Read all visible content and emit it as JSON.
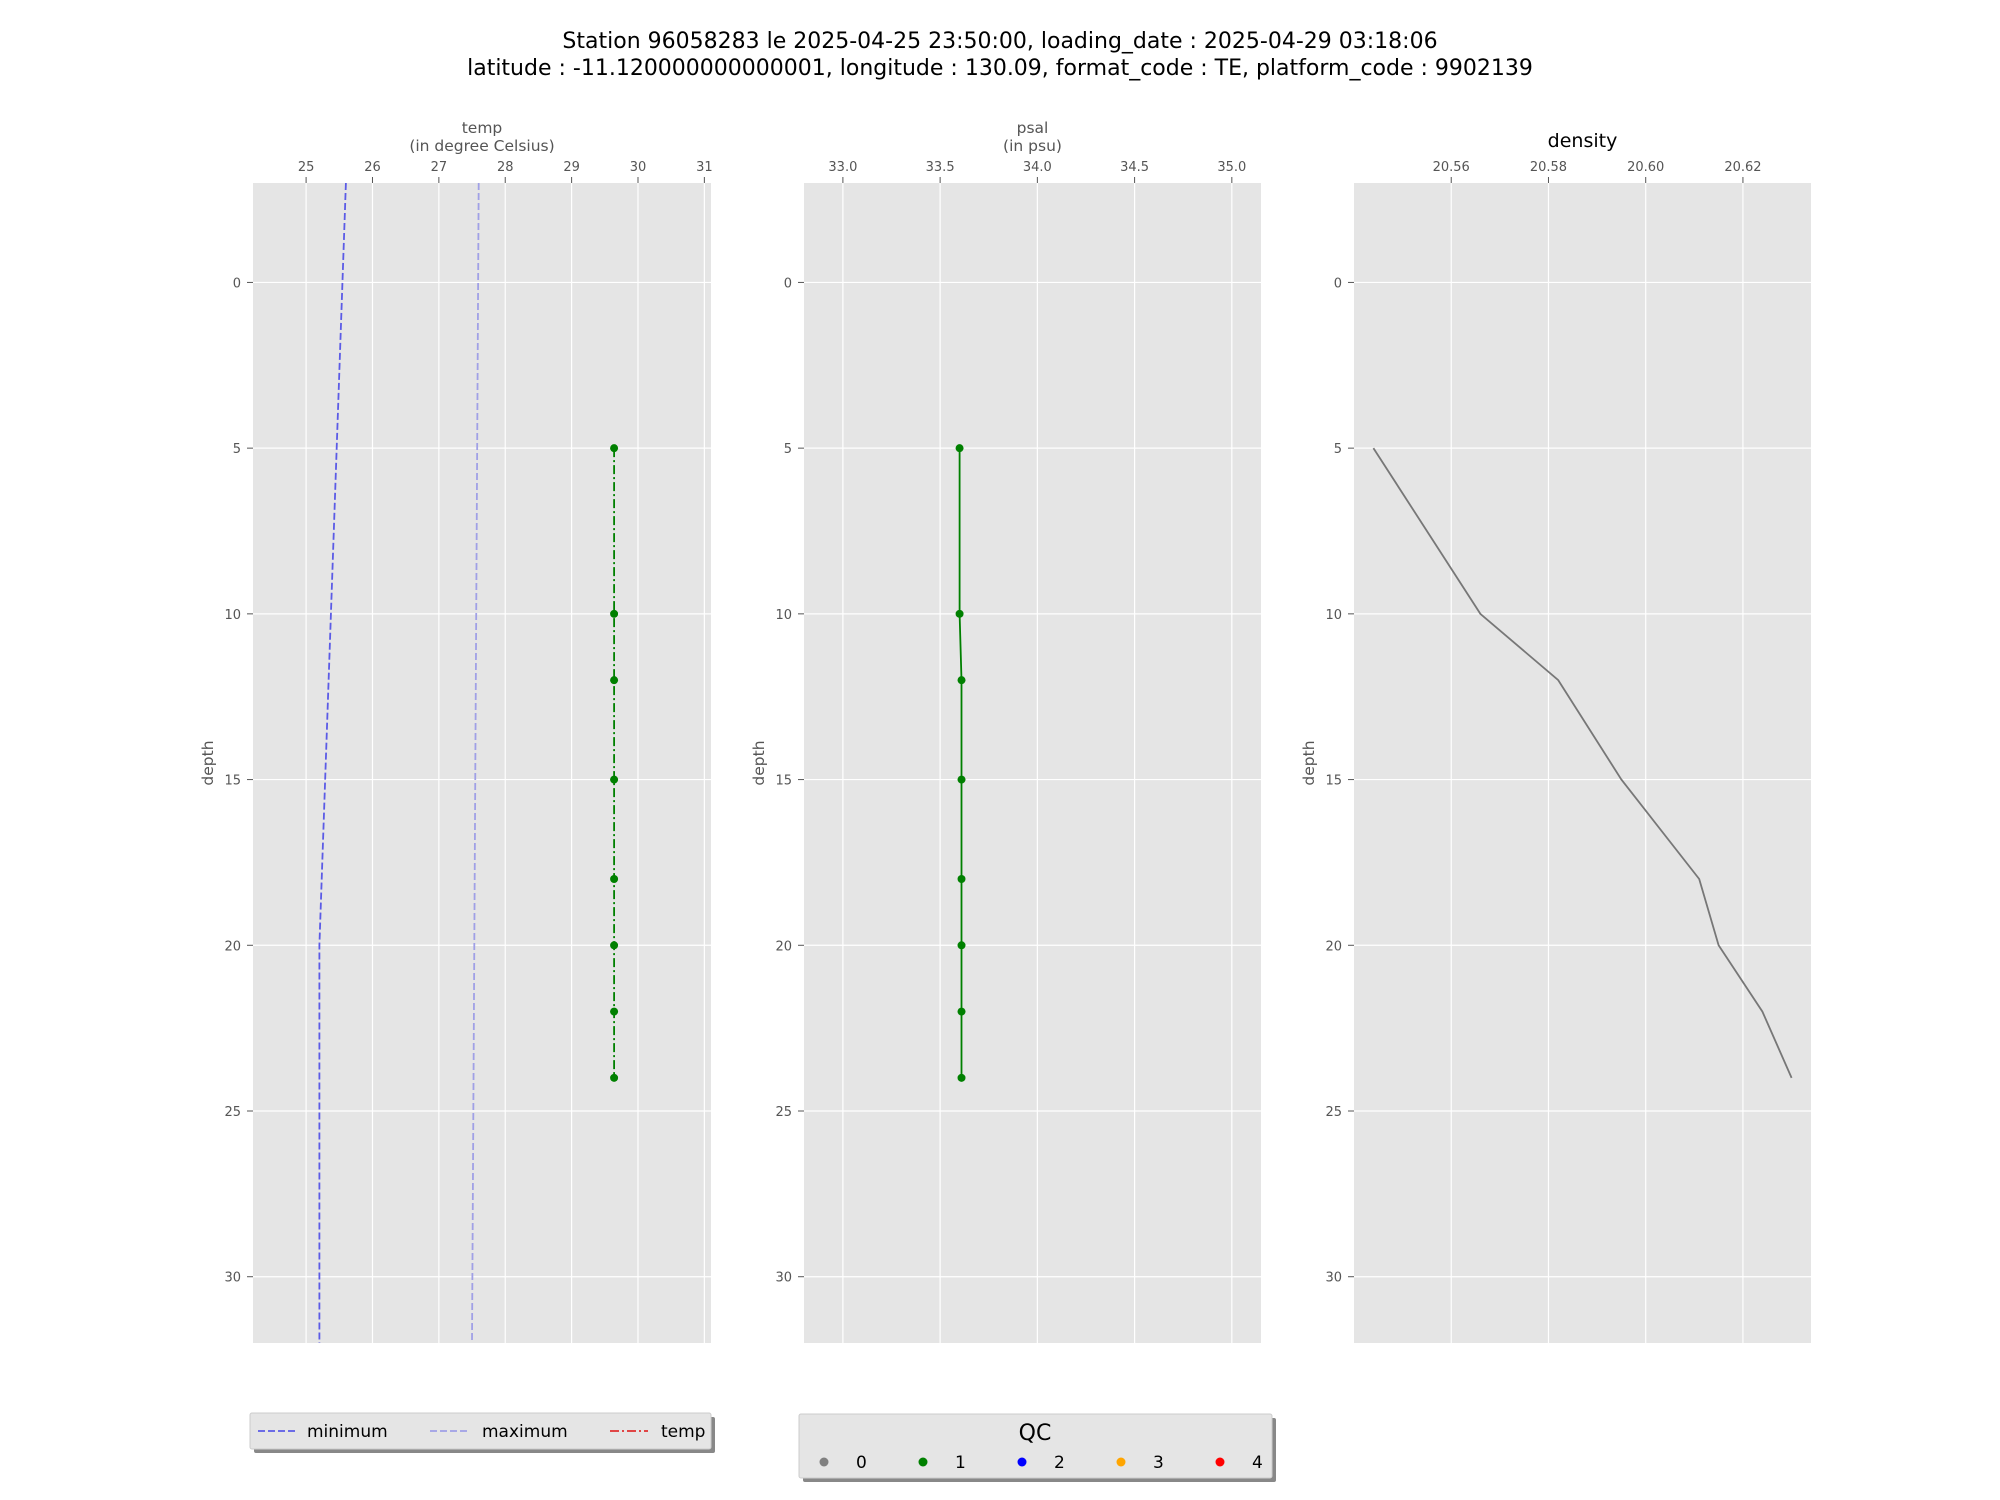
{
  "figure": {
    "title_line1": "Station 96058283 le 2025-04-25 23:50:00, loading_date : 2025-04-29 03:18:06",
    "title_line2": "latitude : -11.120000000000001, longitude : 130.09, format_code : TE, platform_code : 9902139"
  },
  "colors": {
    "panel_bg": "#e5e5e5",
    "grid": "#ffffff",
    "minimum": "#5b5be6",
    "maximum": "#a0a0e6",
    "temp_legend": "#e03030",
    "qc1": "#008000",
    "density": "#777777"
  },
  "chart_data": [
    {
      "type": "line",
      "title": "",
      "xlabel_line1": "temp",
      "xlabel_line2": "(in degree Celsius)",
      "ylabel": "depth",
      "xlim": [
        24.2,
        31.1
      ],
      "ylim": [
        32,
        -3
      ],
      "y_inverted": true,
      "xticks": [
        25,
        26,
        27,
        28,
        29,
        30,
        31
      ],
      "yticks": [
        0,
        5,
        10,
        15,
        20,
        25,
        30
      ],
      "grid": true,
      "series": [
        {
          "name": "minimum",
          "style": "dashed",
          "x": [
            25.6,
            25.2,
            25.2
          ],
          "y": [
            -3,
            20,
            32
          ]
        },
        {
          "name": "maximum",
          "style": "dashed",
          "x": [
            27.6,
            27.5
          ],
          "y": [
            -3,
            32
          ]
        },
        {
          "name": "temp",
          "style": "dashdot",
          "x": [
            29.64,
            29.64,
            29.64,
            29.64,
            29.64,
            29.64,
            29.64,
            29.64
          ],
          "y": [
            5,
            10,
            12,
            15,
            18,
            20,
            22,
            24
          ],
          "qc": [
            1,
            1,
            1,
            1,
            1,
            1,
            1,
            1
          ]
        }
      ]
    },
    {
      "type": "line",
      "title": "",
      "xlabel_line1": "psal",
      "xlabel_line2": "(in psu)",
      "ylabel": "depth",
      "xlim": [
        32.8,
        35.15
      ],
      "ylim": [
        32,
        -3
      ],
      "y_inverted": true,
      "xticks": [
        33.0,
        33.5,
        34.0,
        34.5,
        35.0
      ],
      "xtick_labels": [
        "33.0",
        "33.5",
        "34.0",
        "34.5",
        "35.0"
      ],
      "yticks": [
        0,
        5,
        10,
        15,
        20,
        25,
        30
      ],
      "grid": true,
      "series": [
        {
          "name": "psal",
          "style": "solid",
          "x": [
            33.6,
            33.6,
            33.61,
            33.61,
            33.61,
            33.61,
            33.61,
            33.61
          ],
          "y": [
            5,
            10,
            12,
            15,
            18,
            20,
            22,
            24
          ],
          "qc": [
            1,
            1,
            1,
            1,
            1,
            1,
            1,
            1
          ]
        }
      ]
    },
    {
      "type": "line",
      "title": "density",
      "xlabel_line1": "",
      "xlabel_line2": "",
      "ylabel": "depth",
      "xlim": [
        20.54,
        20.634
      ],
      "ylim": [
        32,
        -3
      ],
      "y_inverted": true,
      "xticks": [
        20.56,
        20.58,
        20.6,
        20.62
      ],
      "xtick_labels": [
        "20.56",
        "20.58",
        "20.60",
        "20.62"
      ],
      "yticks": [
        0,
        5,
        10,
        15,
        20,
        25,
        30
      ],
      "grid": true,
      "series": [
        {
          "name": "density",
          "style": "solid",
          "x": [
            20.544,
            20.566,
            20.582,
            20.595,
            20.611,
            20.615,
            20.624,
            20.63
          ],
          "y": [
            5,
            10,
            12,
            15,
            18,
            20,
            22,
            24
          ]
        }
      ]
    }
  ],
  "legend1": {
    "items": [
      {
        "label": "minimum",
        "style": "dashed",
        "color_key": "minimum"
      },
      {
        "label": "maximum",
        "style": "dashed",
        "color_key": "maximum"
      },
      {
        "label": "temp",
        "style": "dashdot",
        "color_key": "temp_legend"
      }
    ]
  },
  "legend2": {
    "title": "QC",
    "items": [
      {
        "label": "0",
        "color": "#808080"
      },
      {
        "label": "1",
        "color": "#008000"
      },
      {
        "label": "2",
        "color": "#0000ff"
      },
      {
        "label": "3",
        "color": "#ffa500"
      },
      {
        "label": "4",
        "color": "#ff0000"
      }
    ]
  }
}
